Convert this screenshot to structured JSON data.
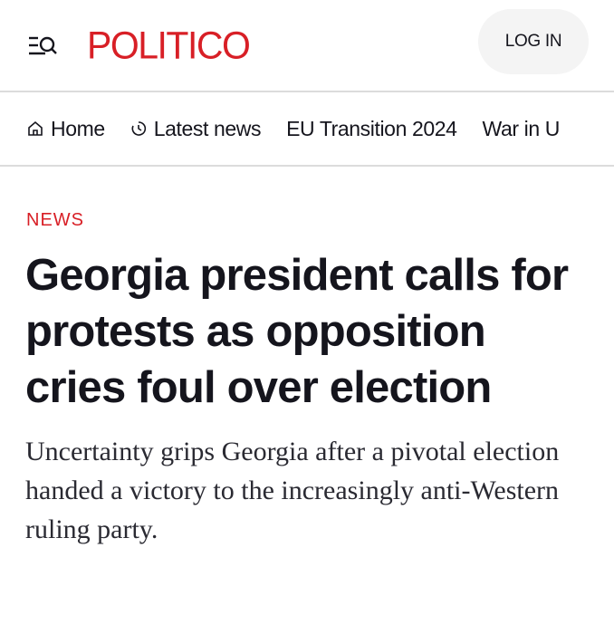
{
  "header": {
    "logo": "POLITICO",
    "login_label": "LOG IN",
    "brand_color": "#d81f26"
  },
  "nav": {
    "items": [
      {
        "label": "Home",
        "icon": "home-icon"
      },
      {
        "label": "Latest news",
        "icon": "clock-icon"
      },
      {
        "label": "EU Transition 2024"
      },
      {
        "label": "War in U"
      }
    ]
  },
  "article": {
    "kicker": "NEWS",
    "headline": "Georgia president calls for protests as opposition cries foul over election",
    "dek": "Uncertainty grips Georgia after a pivotal election handed a victory to the increasingly anti-Western ruling party."
  }
}
